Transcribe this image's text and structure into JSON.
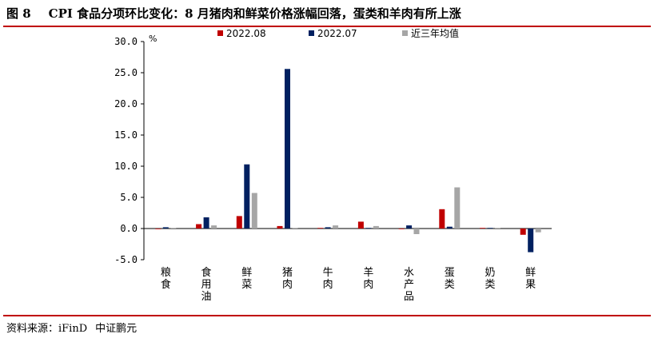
{
  "header": {
    "figure_number": "图 8",
    "title": "CPI 食品分项环比变化：8 月猪肉和鲜菜价格涨幅回落，蛋类和羊肉有所上涨"
  },
  "footer": {
    "source_label": "资料来源：iFinD",
    "source_org": "中证鹏元"
  },
  "colors": {
    "rule": "#c00000",
    "series_1": "#c00000",
    "series_2": "#002060",
    "series_3": "#a6a6a6"
  },
  "chart_data": {
    "type": "bar",
    "unit_label": "%",
    "ylim": [
      -5,
      30
    ],
    "yticks": [
      "30.0",
      "25.0",
      "20.0",
      "15.0",
      "10.0",
      "5.0",
      "0.0",
      "-5.0"
    ],
    "ytick_values": [
      30,
      25,
      20,
      15,
      10,
      5,
      0,
      -5
    ],
    "legend_position": "top",
    "categories": [
      "粮食",
      "食用油",
      "鲜菜",
      "猪肉",
      "牛肉",
      "羊肉",
      "水产品",
      "蛋类",
      "奶类",
      "鲜果"
    ],
    "series": [
      {
        "name": "2022.08",
        "color": "#c00000",
        "values": [
          0.0,
          0.7,
          2.0,
          0.4,
          0.1,
          1.1,
          0.0,
          3.1,
          0.1,
          -1.0
        ]
      },
      {
        "name": "2022.07",
        "color": "#002060",
        "values": [
          0.2,
          1.8,
          10.3,
          25.6,
          0.2,
          0.1,
          0.5,
          0.3,
          0.1,
          -3.8
        ]
      },
      {
        "name": "近三年均值",
        "color": "#a6a6a6",
        "values": [
          0.1,
          0.5,
          5.7,
          0.1,
          0.5,
          0.4,
          -0.9,
          6.6,
          0.1,
          -0.6
        ]
      }
    ]
  }
}
